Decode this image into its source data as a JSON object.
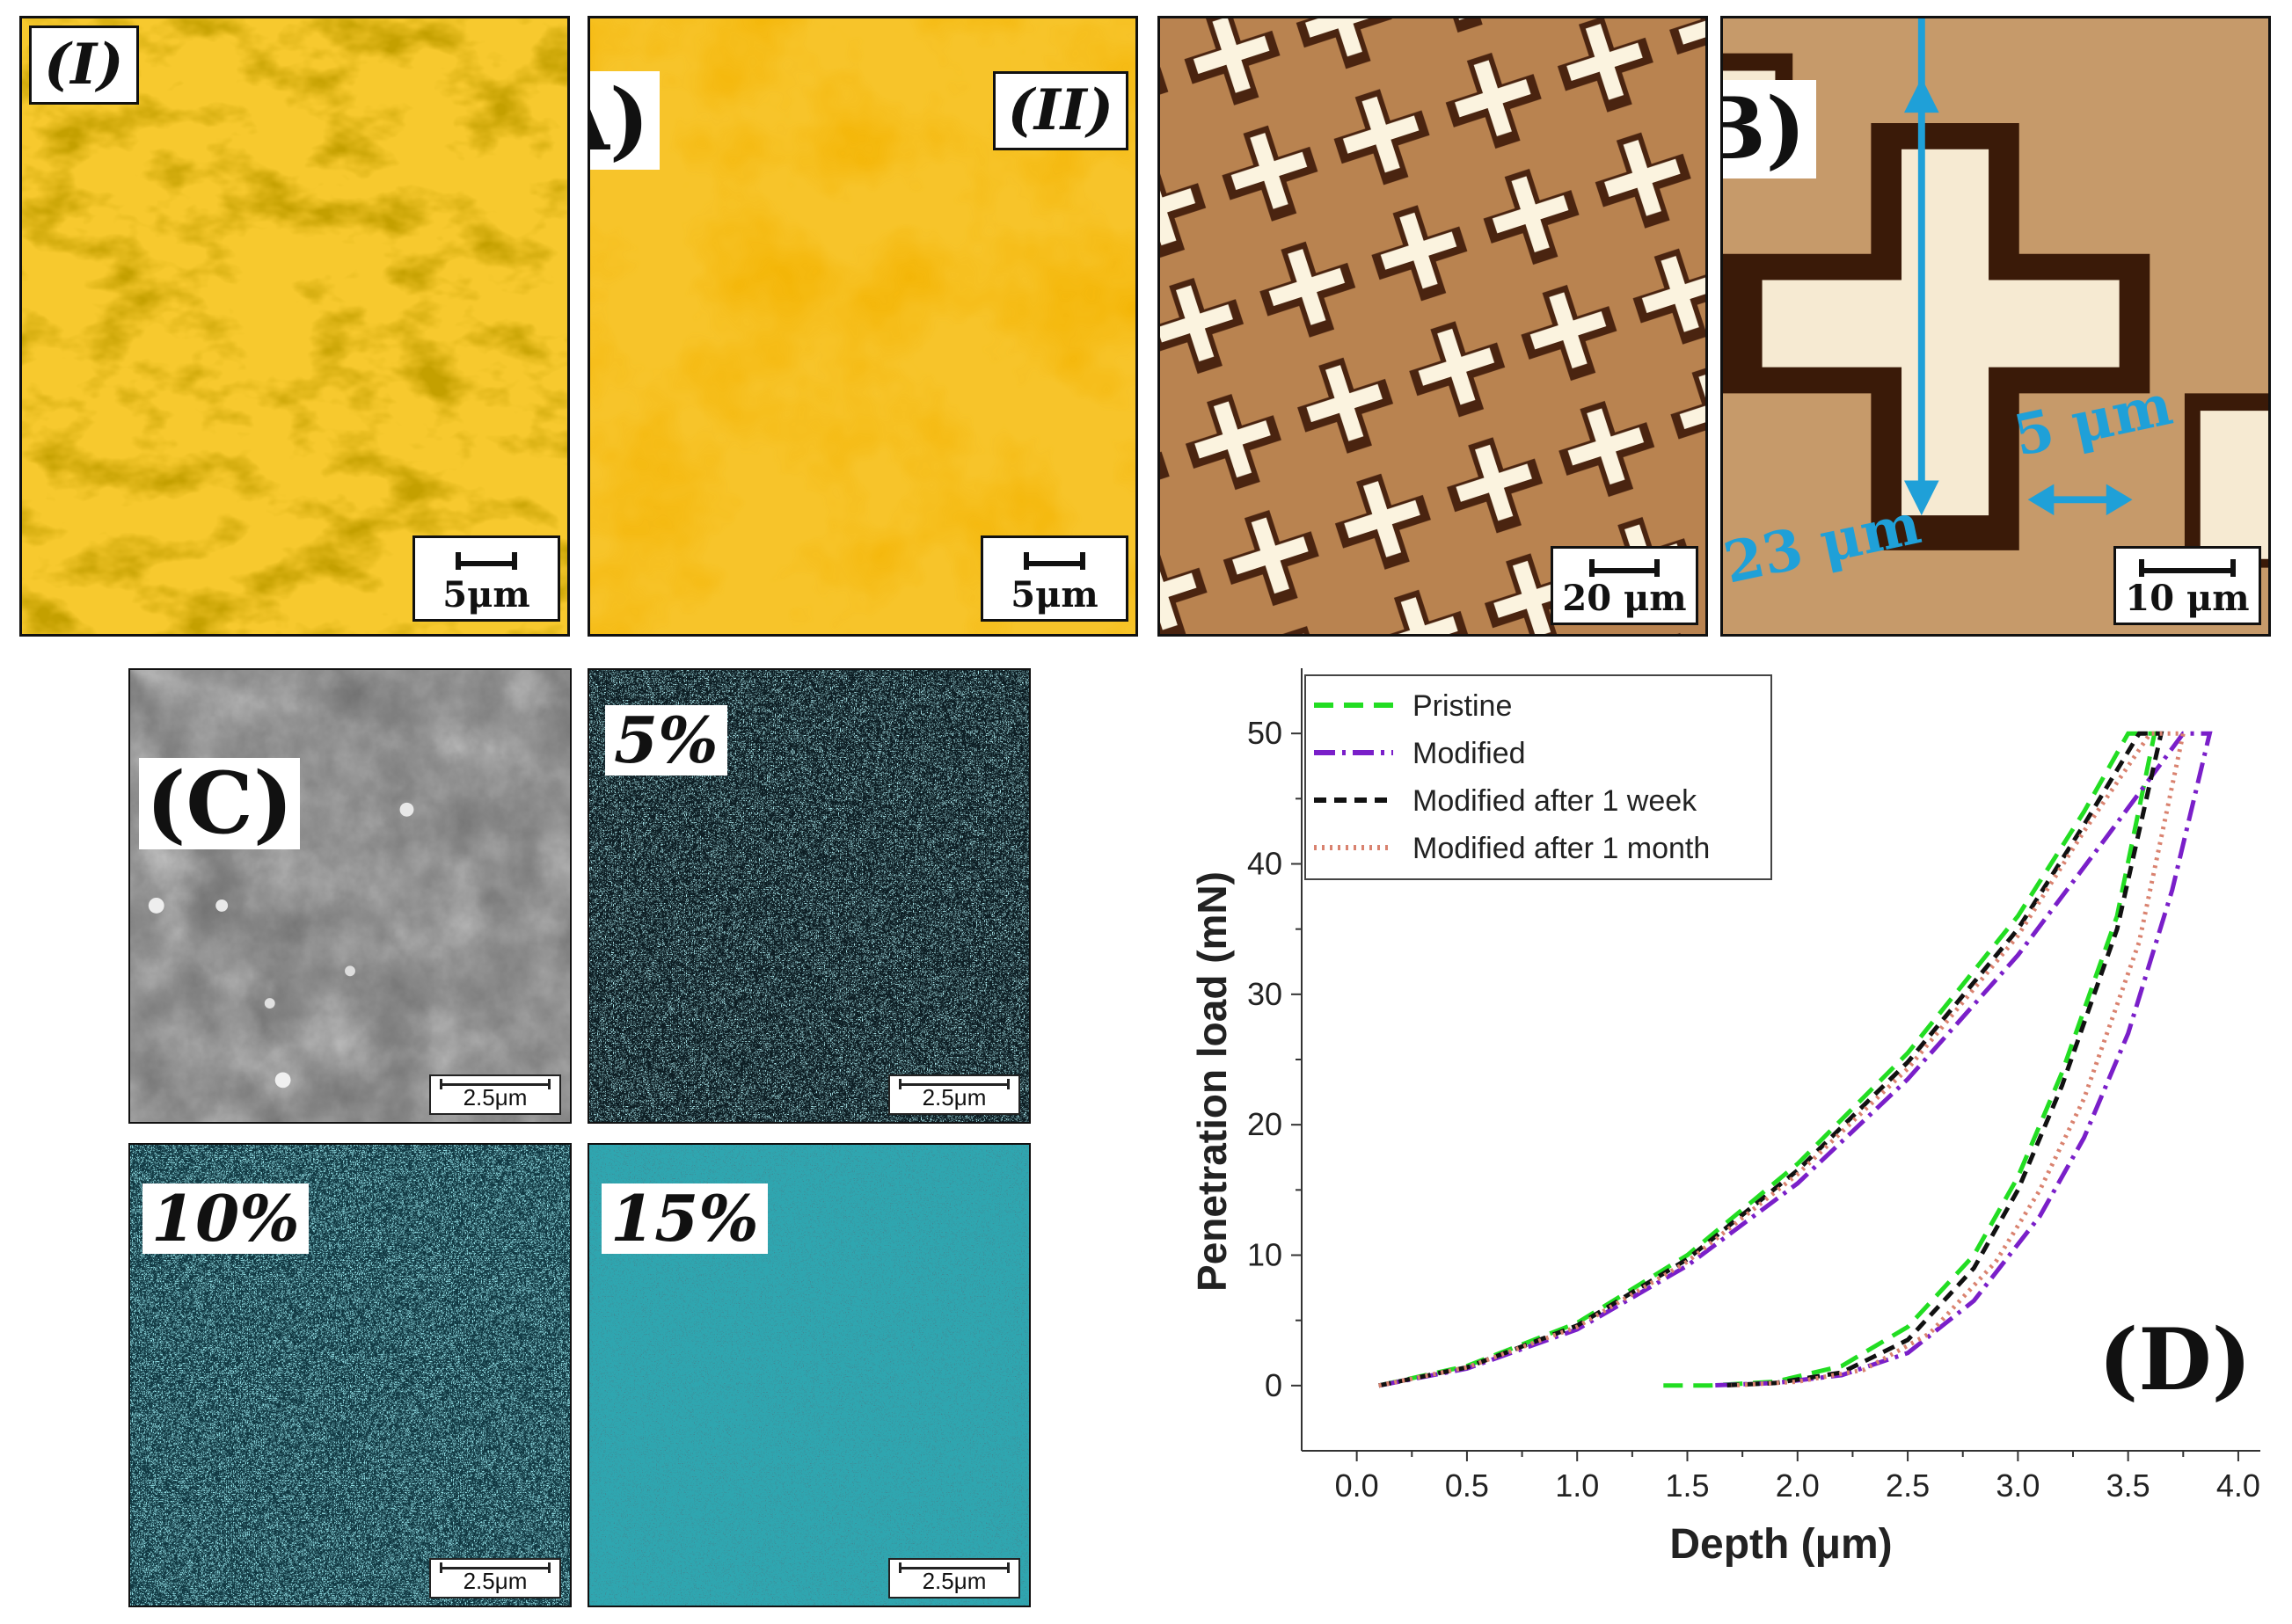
{
  "panel_A": {
    "label": "(A)",
    "sub1": {
      "label": "(I)",
      "scale": "5μm"
    },
    "sub2": {
      "label": "(II)",
      "scale": "5μm"
    }
  },
  "panel_B": {
    "label": "(B)",
    "sub1": {
      "scale": "20 μm"
    },
    "sub2": {
      "scale": "10 μm",
      "dim_height": "23 μm",
      "dim_gap": "5 μm"
    }
  },
  "panel_C": {
    "label": "(C)",
    "maps": [
      {
        "pct": "",
        "scale": "2.5μm"
      },
      {
        "pct": "5%",
        "scale": "2.5μm"
      },
      {
        "pct": "10%",
        "scale": "2.5μm"
      },
      {
        "pct": "15%",
        "scale": "2.5μm"
      }
    ]
  },
  "colors": {
    "cyan": "#1fa0d8",
    "green": "#22dd22",
    "purple": "#7a1fc9",
    "black": "#111111",
    "salmon": "#d9826f"
  },
  "chart_data": {
    "type": "line",
    "panel_label": "(D)",
    "title": "",
    "xlabel": "Depth (μm)",
    "ylabel": "Penetration load (mN)",
    "xlim": [
      -0.25,
      4.1
    ],
    "ylim": [
      -5,
      55
    ],
    "xticks": [
      "0.0",
      "0.5",
      "1.0",
      "1.5",
      "2.0",
      "2.5",
      "3.0",
      "3.5",
      "4.0"
    ],
    "yticks": [
      "0",
      "10",
      "20",
      "30",
      "40",
      "50"
    ],
    "legend_position": "top-left",
    "series": [
      {
        "name": "Pristine",
        "color": "#22dd22",
        "dash": "22 12",
        "loading": {
          "x": [
            0.1,
            0.5,
            1.0,
            1.5,
            2.0,
            2.5,
            3.0,
            3.3,
            3.5
          ],
          "y": [
            0,
            1.5,
            4.8,
            10,
            17,
            25.5,
            36,
            44,
            50
          ]
        },
        "unloading": {
          "x": [
            1.38,
            1.6,
            1.9,
            2.2,
            2.5,
            2.8,
            3.0,
            3.2,
            3.45,
            3.62
          ],
          "y": [
            0,
            0,
            0.3,
            1.5,
            4.5,
            10,
            16,
            24,
            36,
            50
          ]
        }
      },
      {
        "name": "Modified",
        "color": "#7a1fc9",
        "dash": "24 8 4 8",
        "loading": {
          "x": [
            0.1,
            0.5,
            1.0,
            1.5,
            2.0,
            2.5,
            3.0,
            3.4,
            3.75
          ],
          "y": [
            0,
            1.3,
            4.3,
            9.2,
            15.5,
            23.5,
            33,
            42,
            50
          ]
        },
        "unloading": {
          "x": [
            1.6,
            1.9,
            2.2,
            2.5,
            2.8,
            3.1,
            3.3,
            3.5,
            3.7,
            3.87
          ],
          "y": [
            0,
            0.2,
            0.8,
            2.5,
            6.5,
            13,
            19,
            27,
            38,
            50
          ]
        }
      },
      {
        "name": "Modified after 1 week",
        "color": "#111111",
        "dash": "14 9",
        "loading": {
          "x": [
            0.1,
            0.5,
            1.0,
            1.5,
            2.0,
            2.5,
            3.0,
            3.3,
            3.55
          ],
          "y": [
            0,
            1.4,
            4.6,
            9.7,
            16.5,
            24.8,
            35,
            43,
            50
          ]
        },
        "unloading": {
          "x": [
            1.65,
            1.9,
            2.2,
            2.5,
            2.8,
            3.0,
            3.2,
            3.45,
            3.65
          ],
          "y": [
            0,
            0.2,
            1,
            3.5,
            9,
            15,
            23,
            35,
            50
          ]
        }
      },
      {
        "name": "Modified after 1 month",
        "color": "#d9826f",
        "dash": "3 6",
        "loading": {
          "x": [
            0.1,
            0.5,
            1.0,
            1.5,
            2.0,
            2.5,
            3.0,
            3.3,
            3.6
          ],
          "y": [
            0,
            1.4,
            4.5,
            9.5,
            16.2,
            24.3,
            34.5,
            42.5,
            50
          ]
        },
        "unloading": {
          "x": [
            1.7,
            2.0,
            2.3,
            2.6,
            2.9,
            3.1,
            3.3,
            3.55,
            3.75
          ],
          "y": [
            0,
            0.3,
            1.2,
            4,
            9.5,
            15,
            22,
            34,
            50
          ]
        }
      }
    ]
  }
}
